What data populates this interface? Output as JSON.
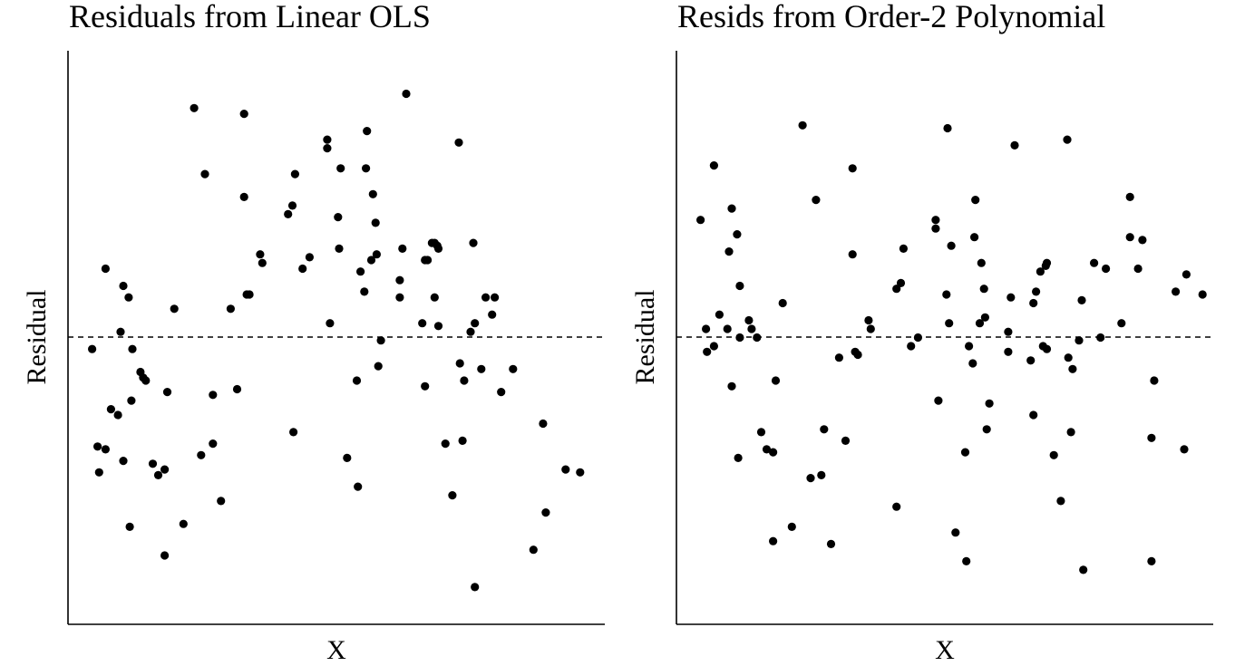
{
  "chart_data": [
    {
      "type": "scatter",
      "title": "Residuals from Linear OLS",
      "xlabel": "X",
      "ylabel": "Residual",
      "xlim": [
        0,
        1
      ],
      "ylim": [
        -1,
        1
      ],
      "reference_line": {
        "y": 0,
        "style": "dashed"
      },
      "grid": false,
      "points": [
        {
          "x": 0.045,
          "y": -0.04
        },
        {
          "x": 0.055,
          "y": -0.38
        },
        {
          "x": 0.058,
          "y": -0.47
        },
        {
          "x": 0.07,
          "y": -0.39
        },
        {
          "x": 0.07,
          "y": 0.24
        },
        {
          "x": 0.08,
          "y": -0.25
        },
        {
          "x": 0.093,
          "y": -0.27
        },
        {
          "x": 0.098,
          "y": 0.02
        },
        {
          "x": 0.103,
          "y": 0.18
        },
        {
          "x": 0.103,
          "y": -0.43
        },
        {
          "x": 0.113,
          "y": 0.14
        },
        {
          "x": 0.115,
          "y": -0.66
        },
        {
          "x": 0.118,
          "y": -0.22
        },
        {
          "x": 0.12,
          "y": -0.04
        },
        {
          "x": 0.135,
          "y": -0.12
        },
        {
          "x": 0.14,
          "y": -0.14
        },
        {
          "x": 0.145,
          "y": -0.15
        },
        {
          "x": 0.158,
          "y": -0.44
        },
        {
          "x": 0.168,
          "y": -0.48
        },
        {
          "x": 0.18,
          "y": -0.76
        },
        {
          "x": 0.18,
          "y": -0.46
        },
        {
          "x": 0.185,
          "y": -0.19
        },
        {
          "x": 0.198,
          "y": 0.1
        },
        {
          "x": 0.215,
          "y": -0.65
        },
        {
          "x": 0.235,
          "y": 0.8
        },
        {
          "x": 0.248,
          "y": -0.41
        },
        {
          "x": 0.255,
          "y": 0.57
        },
        {
          "x": 0.27,
          "y": -0.37
        },
        {
          "x": 0.27,
          "y": -0.2
        },
        {
          "x": 0.285,
          "y": -0.57
        },
        {
          "x": 0.303,
          "y": 0.1
        },
        {
          "x": 0.315,
          "y": -0.18
        },
        {
          "x": 0.328,
          "y": 0.78
        },
        {
          "x": 0.328,
          "y": 0.49
        },
        {
          "x": 0.333,
          "y": 0.15
        },
        {
          "x": 0.338,
          "y": 0.15
        },
        {
          "x": 0.358,
          "y": 0.29
        },
        {
          "x": 0.362,
          "y": 0.26
        },
        {
          "x": 0.41,
          "y": 0.43
        },
        {
          "x": 0.418,
          "y": 0.46
        },
        {
          "x": 0.42,
          "y": -0.33
        },
        {
          "x": 0.423,
          "y": 0.57
        },
        {
          "x": 0.437,
          "y": 0.24
        },
        {
          "x": 0.45,
          "y": 0.28
        },
        {
          "x": 0.483,
          "y": 0.66
        },
        {
          "x": 0.483,
          "y": 0.69
        },
        {
          "x": 0.488,
          "y": 0.05
        },
        {
          "x": 0.503,
          "y": 0.42
        },
        {
          "x": 0.505,
          "y": 0.31
        },
        {
          "x": 0.508,
          "y": 0.59
        },
        {
          "x": 0.52,
          "y": -0.42
        },
        {
          "x": 0.538,
          "y": -0.15
        },
        {
          "x": 0.54,
          "y": -0.52
        },
        {
          "x": 0.545,
          "y": 0.23
        },
        {
          "x": 0.552,
          "y": 0.16
        },
        {
          "x": 0.555,
          "y": 0.59
        },
        {
          "x": 0.557,
          "y": 0.72
        },
        {
          "x": 0.565,
          "y": 0.27
        },
        {
          "x": 0.568,
          "y": 0.5
        },
        {
          "x": 0.573,
          "y": 0.4
        },
        {
          "x": 0.575,
          "y": 0.29
        },
        {
          "x": 0.578,
          "y": -0.1
        },
        {
          "x": 0.583,
          "y": -0.01
        },
        {
          "x": 0.618,
          "y": 0.14
        },
        {
          "x": 0.618,
          "y": 0.2
        },
        {
          "x": 0.623,
          "y": 0.31
        },
        {
          "x": 0.63,
          "y": 0.85
        },
        {
          "x": 0.66,
          "y": 0.05
        },
        {
          "x": 0.665,
          "y": -0.17
        },
        {
          "x": 0.665,
          "y": 0.27
        },
        {
          "x": 0.67,
          "y": 0.27
        },
        {
          "x": 0.678,
          "y": 0.33
        },
        {
          "x": 0.683,
          "y": 0.14
        },
        {
          "x": 0.688,
          "y": 0.32
        },
        {
          "x": 0.69,
          "y": 0.31
        },
        {
          "x": 0.69,
          "y": 0.04
        },
        {
          "x": 0.703,
          "y": -0.37
        },
        {
          "x": 0.716,
          "y": -0.55
        },
        {
          "x": 0.728,
          "y": 0.68
        },
        {
          "x": 0.73,
          "y": -0.09
        },
        {
          "x": 0.735,
          "y": -0.36
        },
        {
          "x": 0.738,
          "y": -0.15
        },
        {
          "x": 0.75,
          "y": 0.02
        },
        {
          "x": 0.755,
          "y": 0.33
        },
        {
          "x": 0.758,
          "y": 0.05
        },
        {
          "x": 0.778,
          "y": 0.14
        },
        {
          "x": 0.79,
          "y": 0.08
        },
        {
          "x": 0.807,
          "y": -0.19
        },
        {
          "x": 0.829,
          "y": -0.11
        },
        {
          "x": 0.867,
          "y": -0.74
        },
        {
          "x": 0.885,
          "y": -0.3
        },
        {
          "x": 0.89,
          "y": -0.61
        },
        {
          "x": 0.927,
          "y": -0.46
        },
        {
          "x": 0.954,
          "y": -0.47
        },
        {
          "x": 0.758,
          "y": -0.87
        },
        {
          "x": 0.77,
          "y": -0.11
        },
        {
          "x": 0.795,
          "y": 0.14
        },
        {
          "x": 0.683,
          "y": 0.33
        }
      ]
    },
    {
      "type": "scatter",
      "title": "Resids from Order-2 Polynomial",
      "xlabel": "X",
      "ylabel": "Residual",
      "xlim": [
        0,
        1
      ],
      "ylim": [
        -1,
        1
      ],
      "reference_line": {
        "y": 0,
        "style": "dashed"
      },
      "grid": false,
      "points": [
        {
          "x": 0.045,
          "y": 0.41
        },
        {
          "x": 0.055,
          "y": 0.03
        },
        {
          "x": 0.057,
          "y": -0.05
        },
        {
          "x": 0.07,
          "y": -0.03
        },
        {
          "x": 0.07,
          "y": 0.6
        },
        {
          "x": 0.08,
          "y": 0.08
        },
        {
          "x": 0.095,
          "y": 0.03
        },
        {
          "x": 0.098,
          "y": 0.3
        },
        {
          "x": 0.103,
          "y": 0.45
        },
        {
          "x": 0.103,
          "y": -0.17
        },
        {
          "x": 0.113,
          "y": 0.36
        },
        {
          "x": 0.115,
          "y": -0.42
        },
        {
          "x": 0.118,
          "y": 0.18
        },
        {
          "x": 0.118,
          "y": 0.0
        },
        {
          "x": 0.135,
          "y": 0.06
        },
        {
          "x": 0.14,
          "y": 0.03
        },
        {
          "x": 0.15,
          "y": 0.0
        },
        {
          "x": 0.158,
          "y": -0.33
        },
        {
          "x": 0.168,
          "y": -0.39
        },
        {
          "x": 0.18,
          "y": -0.71
        },
        {
          "x": 0.18,
          "y": -0.4
        },
        {
          "x": 0.185,
          "y": -0.15
        },
        {
          "x": 0.198,
          "y": 0.12
        },
        {
          "x": 0.215,
          "y": -0.66
        },
        {
          "x": 0.235,
          "y": 0.74
        },
        {
          "x": 0.26,
          "y": 0.48
        },
        {
          "x": 0.25,
          "y": -0.49
        },
        {
          "x": 0.27,
          "y": -0.48
        },
        {
          "x": 0.275,
          "y": -0.32
        },
        {
          "x": 0.288,
          "y": -0.72
        },
        {
          "x": 0.303,
          "y": -0.07
        },
        {
          "x": 0.315,
          "y": -0.36
        },
        {
          "x": 0.328,
          "y": 0.59
        },
        {
          "x": 0.328,
          "y": 0.29
        },
        {
          "x": 0.333,
          "y": -0.05
        },
        {
          "x": 0.338,
          "y": -0.06
        },
        {
          "x": 0.358,
          "y": 0.06
        },
        {
          "x": 0.362,
          "y": 0.03
        },
        {
          "x": 0.41,
          "y": -0.59
        },
        {
          "x": 0.41,
          "y": 0.17
        },
        {
          "x": 0.418,
          "y": 0.19
        },
        {
          "x": 0.423,
          "y": 0.31
        },
        {
          "x": 0.437,
          "y": -0.03
        },
        {
          "x": 0.45,
          "y": 0.0
        },
        {
          "x": 0.483,
          "y": 0.41
        },
        {
          "x": 0.483,
          "y": 0.38
        },
        {
          "x": 0.488,
          "y": -0.22
        },
        {
          "x": 0.503,
          "y": 0.15
        },
        {
          "x": 0.505,
          "y": 0.73
        },
        {
          "x": 0.508,
          "y": 0.05
        },
        {
          "x": 0.512,
          "y": 0.32
        },
        {
          "x": 0.52,
          "y": -0.68
        },
        {
          "x": 0.538,
          "y": -0.4
        },
        {
          "x": 0.54,
          "y": -0.78
        },
        {
          "x": 0.545,
          "y": -0.03
        },
        {
          "x": 0.552,
          "y": -0.09
        },
        {
          "x": 0.555,
          "y": 0.35
        },
        {
          "x": 0.557,
          "y": 0.48
        },
        {
          "x": 0.565,
          "y": 0.05
        },
        {
          "x": 0.568,
          "y": 0.26
        },
        {
          "x": 0.573,
          "y": 0.17
        },
        {
          "x": 0.575,
          "y": 0.07
        },
        {
          "x": 0.578,
          "y": -0.32
        },
        {
          "x": 0.583,
          "y": -0.23
        },
        {
          "x": 0.618,
          "y": 0.02
        },
        {
          "x": 0.618,
          "y": -0.05
        },
        {
          "x": 0.623,
          "y": 0.14
        },
        {
          "x": 0.63,
          "y": 0.67
        },
        {
          "x": 0.66,
          "y": -0.08
        },
        {
          "x": 0.665,
          "y": -0.27
        },
        {
          "x": 0.665,
          "y": 0.12
        },
        {
          "x": 0.67,
          "y": 0.16
        },
        {
          "x": 0.678,
          "y": 0.23
        },
        {
          "x": 0.683,
          "y": -0.03
        },
        {
          "x": 0.688,
          "y": 0.25
        },
        {
          "x": 0.69,
          "y": 0.26
        },
        {
          "x": 0.69,
          "y": -0.04
        },
        {
          "x": 0.703,
          "y": -0.41
        },
        {
          "x": 0.716,
          "y": -0.57
        },
        {
          "x": 0.728,
          "y": 0.69
        },
        {
          "x": 0.73,
          "y": -0.07
        },
        {
          "x": 0.735,
          "y": -0.33
        },
        {
          "x": 0.738,
          "y": -0.11
        },
        {
          "x": 0.75,
          "y": -0.01
        },
        {
          "x": 0.755,
          "y": 0.13
        },
        {
          "x": 0.758,
          "y": -0.81
        },
        {
          "x": 0.778,
          "y": 0.26
        },
        {
          "x": 0.79,
          "y": 0.0
        },
        {
          "x": 0.8,
          "y": 0.24
        },
        {
          "x": 0.829,
          "y": 0.05
        },
        {
          "x": 0.845,
          "y": 0.35
        },
        {
          "x": 0.86,
          "y": 0.24
        },
        {
          "x": 0.868,
          "y": 0.34
        },
        {
          "x": 0.885,
          "y": -0.35
        },
        {
          "x": 0.885,
          "y": -0.78
        },
        {
          "x": 0.89,
          "y": -0.15
        },
        {
          "x": 0.93,
          "y": 0.16
        },
        {
          "x": 0.946,
          "y": -0.39
        },
        {
          "x": 0.95,
          "y": 0.22
        },
        {
          "x": 0.845,
          "y": 0.49
        },
        {
          "x": 0.98,
          "y": 0.15
        }
      ]
    }
  ]
}
